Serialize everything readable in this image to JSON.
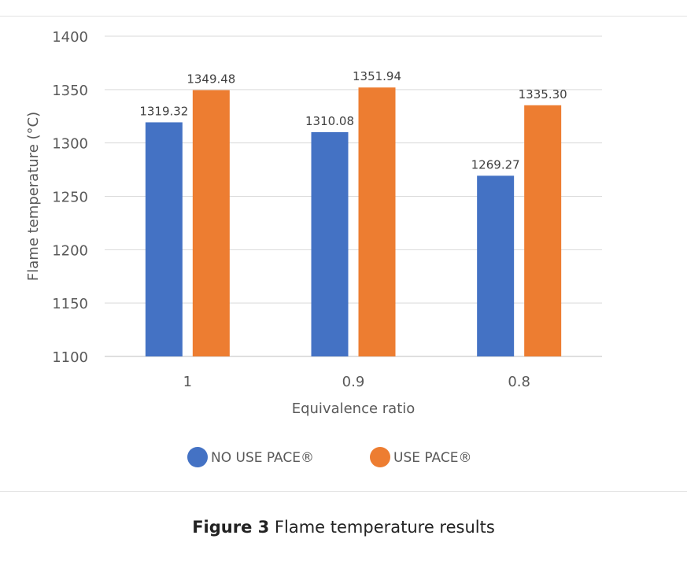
{
  "chart_data": {
    "type": "bar",
    "categories": [
      "1",
      "0.9",
      "0.8"
    ],
    "series": [
      {
        "name": "NO USE  PACE®",
        "values": [
          1319.32,
          1310.08,
          1269.27
        ],
        "labels": [
          "1319.32",
          "1310.08",
          "1269.27"
        ],
        "color": "#4472c4"
      },
      {
        "name": "USE  PACE®",
        "values": [
          1349.48,
          1351.94,
          1335.3
        ],
        "labels": [
          "1349.48",
          "1351.94",
          "1335.30"
        ],
        "color": "#ed7d31"
      }
    ],
    "xlabel": "Equivalence ratio",
    "ylabel": "Flame temperature (°C)",
    "ylim": [
      1100,
      1400
    ],
    "yticks": [
      "1100",
      "1150",
      "1200",
      "1250",
      "1300",
      "1350",
      "1400"
    ],
    "grid": true,
    "legend_position": "bottom"
  },
  "caption": {
    "label": "Figure 3",
    "text": " Flame temperature results"
  }
}
